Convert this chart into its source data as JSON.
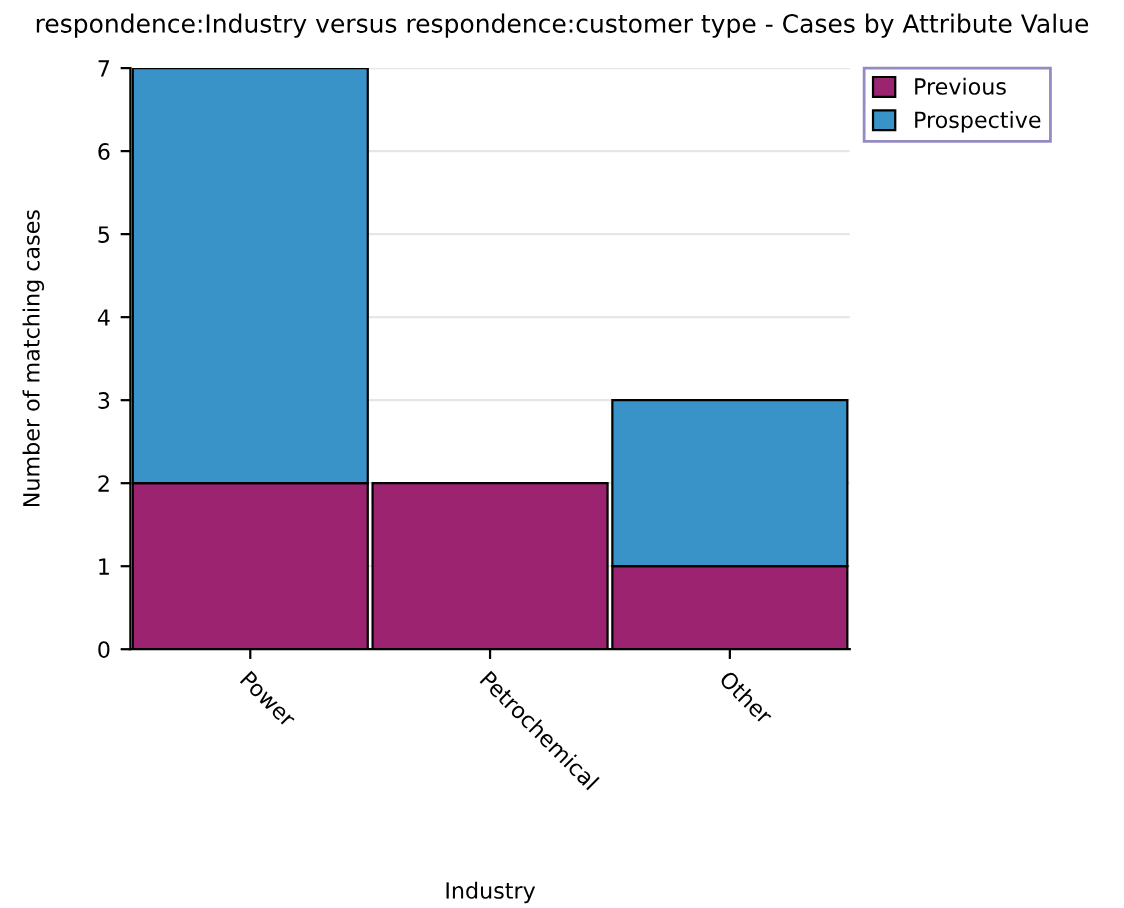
{
  "chart_data": {
    "type": "bar",
    "title": "respondence:Industry versus respondence:customer type - Cases by Attribute Value",
    "xlabel": "Industry",
    "ylabel": "Number of matching cases",
    "categories": [
      "Power",
      "Petrochemical",
      "Other"
    ],
    "stacked": true,
    "series": [
      {
        "name": "Previous",
        "color": "#9b2370",
        "values": [
          2,
          2,
          1
        ]
      },
      {
        "name": "Prospective",
        "color": "#3a93c8",
        "values": [
          5,
          null,
          2
        ]
      }
    ],
    "ylim": [
      0,
      7
    ],
    "yticks": [
      0,
      1,
      2,
      3,
      4,
      5,
      6,
      7
    ],
    "grid": "y",
    "legend": "right"
  }
}
